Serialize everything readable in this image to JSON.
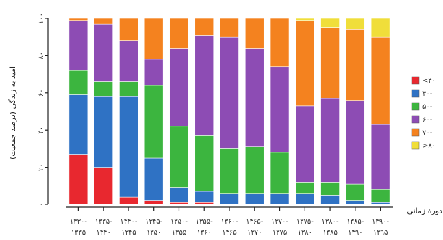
{
  "chart_data": {
    "type": "bar",
    "stacked": true,
    "ylabel": "امید به زندگی (درصد جمعیت)",
    "xlabel": "دورهٔ زمانی",
    "ylim": [
      0,
      100
    ],
    "yticks": [
      "۰",
      "۲۰",
      "۴۰",
      "۶۰",
      "۸۰",
      "۱۰۰"
    ],
    "categories": [
      [
        "۱۳۳۰-",
        "۱۳۳۵"
      ],
      [
        "۱۳۳۵-",
        "۱۳۴۰"
      ],
      [
        "۱۳۴۰-",
        "۱۳۴۵"
      ],
      [
        "۱۳۴۵-",
        "۱۳۵۰"
      ],
      [
        "۱۳۵۰-",
        "۱۳۵۵"
      ],
      [
        "۱۳۵۵-",
        "۱۳۶۰"
      ],
      [
        "۱۳۶۰-",
        "۱۳۶۵"
      ],
      [
        "۱۳۶۵-",
        "۱۳۷۰"
      ],
      [
        "۱۳۷۰-",
        "۱۳۷۵"
      ],
      [
        "۱۳۷۵-",
        "۱۳۸۰"
      ],
      [
        "۱۳۸۰-",
        "۱۳۸۵"
      ],
      [
        "۱۳۸۵-",
        "۱۳۹۰"
      ],
      [
        "۱۳۹۰-",
        "۱۳۹۵"
      ]
    ],
    "series": [
      {
        "name": "<۴۰",
        "color": "#e8282f",
        "values": [
          27,
          20,
          4,
          2,
          1,
          1,
          0,
          0,
          0,
          0,
          0,
          0,
          0
        ]
      },
      {
        "name": "۴۰-",
        "color": "#2f72c4",
        "values": [
          32,
          38,
          54,
          23,
          8,
          6,
          6,
          6,
          6,
          6,
          5,
          2,
          1
        ]
      },
      {
        "name": "۵۰-",
        "color": "#3cb53f",
        "values": [
          13,
          8,
          8,
          39,
          33,
          30,
          24,
          25,
          22,
          6,
          7,
          9,
          7
        ]
      },
      {
        "name": "۶۰-",
        "color": "#8d4cb4",
        "values": [
          27,
          31,
          22,
          14,
          42,
          54,
          60,
          53,
          46,
          41,
          45,
          45,
          35
        ]
      },
      {
        "name": "۷۰-",
        "color": "#f4821f",
        "values": [
          1,
          3,
          12,
          22,
          16,
          9,
          10,
          16,
          26,
          46,
          38,
          38,
          47
        ]
      },
      {
        "name": ">۸۰",
        "color": "#f0de3a",
        "values": [
          0,
          0,
          0,
          0,
          0,
          0,
          0,
          0,
          0,
          1,
          5,
          6,
          10
        ]
      }
    ],
    "grid": false,
    "legend_position": "right"
  }
}
